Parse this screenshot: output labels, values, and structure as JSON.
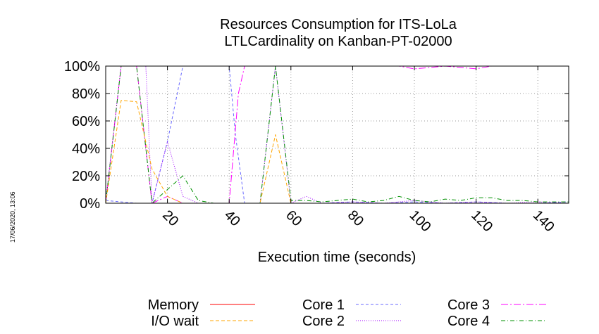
{
  "chart_data": {
    "type": "line",
    "title_line1": "Resources Consumption for ITS-LoLa",
    "title_line2": "LTLCardinality on Kanban-PT-02000",
    "xlabel": "Execution time (seconds)",
    "ylabel": "",
    "xlim": [
      0,
      150
    ],
    "ylim": [
      0,
      100
    ],
    "x_ticks": [
      20,
      40,
      60,
      80,
      100,
      120,
      140
    ],
    "y_ticks": [
      0,
      20,
      40,
      60,
      80,
      100
    ],
    "y_tick_labels": [
      "0%",
      "20%",
      "40%",
      "60%",
      "80%",
      "100%"
    ],
    "grid": true,
    "legend_position": "bottom",
    "timestamp": "17/06/2020, 13:06",
    "series": [
      {
        "name": "Memory",
        "color": "#ff0000",
        "dash": "",
        "x": [
          0,
          150
        ],
        "y": [
          0,
          0
        ]
      },
      {
        "name": "I/O wait",
        "color": "#ffa500",
        "dash": "5,3",
        "x": [
          0,
          5,
          10,
          15,
          20,
          25,
          30,
          35,
          40,
          45,
          50,
          55,
          60,
          65,
          70,
          150
        ],
        "y": [
          0,
          75,
          74,
          25,
          5,
          0,
          0,
          0,
          0,
          0,
          0,
          50,
          0,
          0,
          0,
          0
        ]
      },
      {
        "name": "Core 1",
        "color": "#6a6aff",
        "dash": "4,3",
        "x": [
          0,
          5,
          10,
          15,
          20,
          25,
          30,
          35,
          40,
          42,
          45,
          50,
          55,
          60,
          70,
          80,
          90,
          100,
          110,
          120,
          130,
          140,
          150
        ],
        "y": [
          2,
          1,
          0,
          0,
          45,
          100,
          100,
          100,
          100,
          50,
          0,
          0,
          0,
          0,
          0,
          1,
          0,
          1,
          0,
          1,
          0,
          0,
          1
        ]
      },
      {
        "name": "Core 2",
        "color": "#a000ff",
        "dash": "1,2",
        "x": [
          0,
          5,
          10,
          13,
          15,
          20,
          25,
          30,
          35,
          40,
          45,
          50,
          55,
          60,
          65,
          70,
          80,
          90,
          100,
          110,
          120,
          130,
          140,
          150
        ],
        "y": [
          2,
          100,
          100,
          100,
          0,
          45,
          5,
          0,
          0,
          0,
          0,
          0,
          100,
          0,
          5,
          0,
          1,
          0,
          2,
          0,
          1,
          0,
          1,
          0
        ]
      },
      {
        "name": "Core 3",
        "color": "#ff00ff",
        "dash": "10,3,2,3",
        "x": [
          0,
          5,
          10,
          15,
          20,
          25,
          30,
          35,
          40,
          43,
          45,
          50,
          60,
          70,
          80,
          90,
          95,
          100,
          110,
          115,
          120,
          125,
          130,
          140,
          150
        ],
        "y": [
          0,
          100,
          100,
          0,
          5,
          0,
          0,
          0,
          0,
          80,
          100,
          100,
          100,
          100,
          100,
          100,
          100,
          98,
          100,
          99,
          98,
          100,
          100,
          100,
          100
        ]
      },
      {
        "name": "Core 4",
        "color": "#009000",
        "dash": "6,3,1,3",
        "x": [
          0,
          5,
          10,
          15,
          20,
          25,
          30,
          35,
          40,
          45,
          50,
          55,
          60,
          65,
          70,
          75,
          80,
          85,
          90,
          95,
          100,
          105,
          110,
          115,
          120,
          125,
          130,
          135,
          140,
          150
        ],
        "y": [
          0,
          100,
          100,
          0,
          10,
          20,
          2,
          0,
          0,
          0,
          0,
          100,
          2,
          2,
          1,
          2,
          3,
          1,
          2,
          5,
          2,
          1,
          3,
          2,
          4,
          4,
          2,
          2,
          1,
          1
        ]
      }
    ]
  }
}
